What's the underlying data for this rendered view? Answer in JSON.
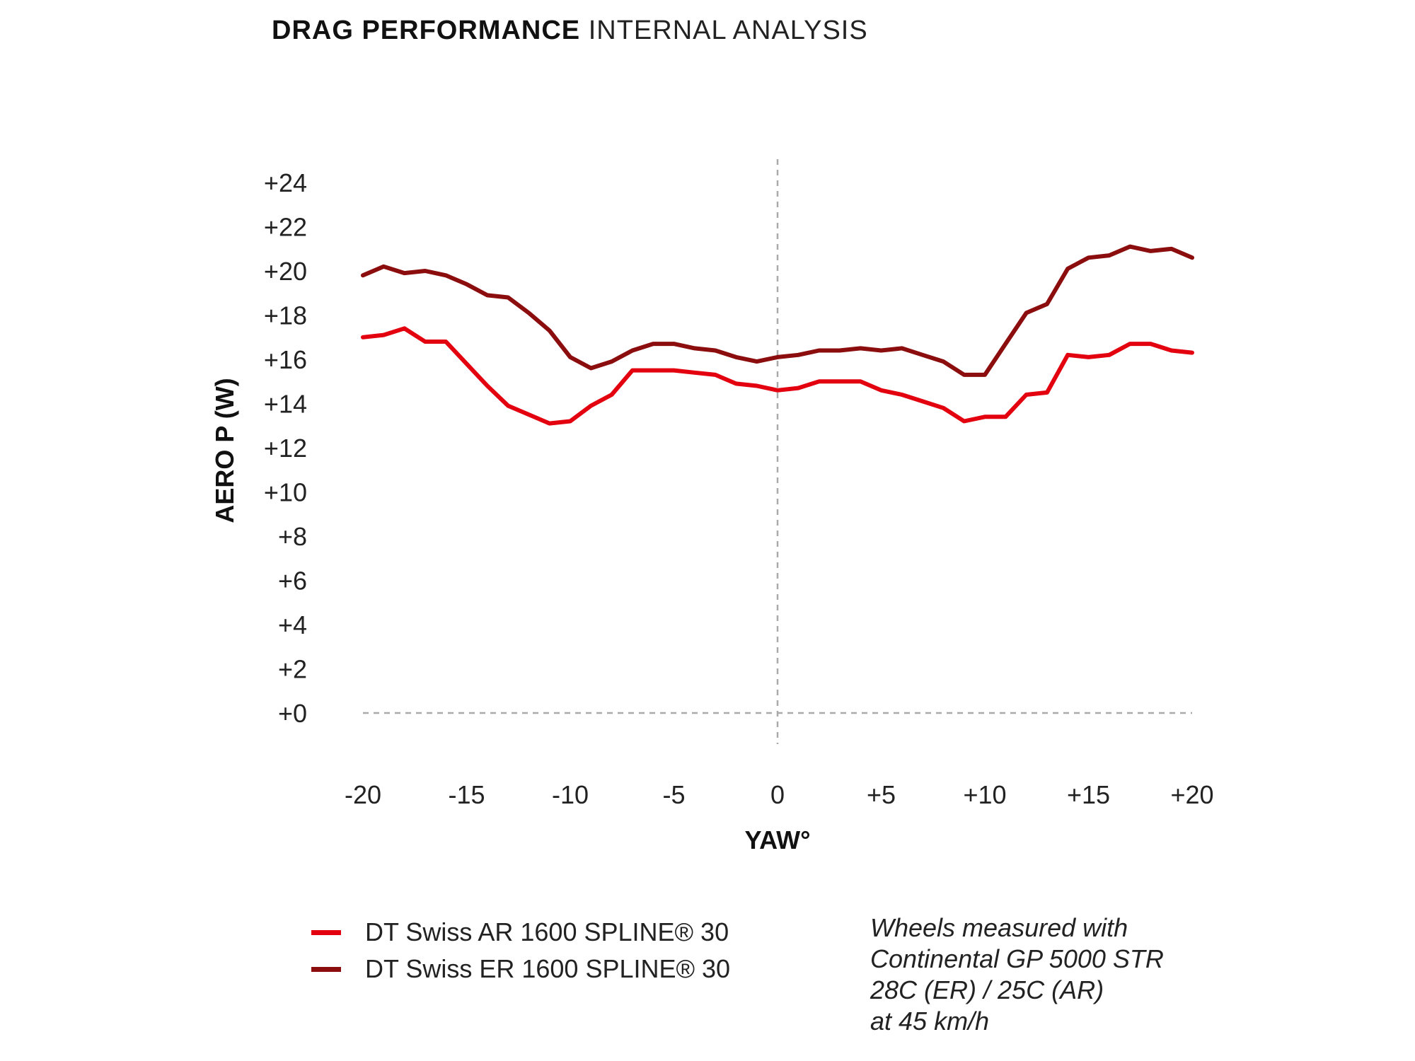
{
  "title": {
    "bold": "DRAG PERFORMANCE",
    "light": "INTERNAL ANALYSIS"
  },
  "note": {
    "lines": [
      "Wheels measured with",
      "Continental GP 5000 STR",
      "28C (ER) / 25C (AR)",
      "at 45 km/h"
    ]
  },
  "chart_data": {
    "type": "line",
    "xlabel": "YAW°",
    "ylabel": "AERO P (W)",
    "xlim": [
      -20,
      20
    ],
    "ylim": [
      0,
      24
    ],
    "x_ticks": [
      -20,
      -15,
      -10,
      -5,
      0,
      5,
      10,
      15,
      20
    ],
    "x_tick_labels": [
      "-20",
      "-15",
      "-10",
      "-5",
      "0",
      "+5",
      "+10",
      "+15",
      "+20"
    ],
    "y_ticks": [
      0,
      2,
      4,
      6,
      8,
      10,
      12,
      14,
      16,
      18,
      20,
      22,
      24
    ],
    "y_tick_labels": [
      "+0",
      "+2",
      "+4",
      "+6",
      "+8",
      "+10",
      "+12",
      "+14",
      "+16",
      "+18",
      "+20",
      "+22",
      "+24"
    ],
    "grid": false,
    "reference_lines": [
      {
        "axis": "x",
        "value": 0,
        "style": "dashed"
      },
      {
        "axis": "y",
        "value": 0,
        "style": "dashed"
      }
    ],
    "legend_position": "bottom-left",
    "x": [
      -20,
      -19,
      -18,
      -17,
      -16,
      -15,
      -14,
      -13,
      -12,
      -11,
      -10,
      -9,
      -8,
      -7,
      -6,
      -5,
      -4,
      -3,
      -2,
      -1,
      0,
      1,
      2,
      3,
      4,
      5,
      6,
      7,
      8,
      9,
      10,
      11,
      12,
      13,
      14,
      15,
      16,
      17,
      18,
      19,
      20
    ],
    "series": [
      {
        "name": "DT Swiss AR 1600 SPLINE® 30",
        "color": "#e3000f",
        "values": [
          17.0,
          17.1,
          17.4,
          16.8,
          16.8,
          15.8,
          14.8,
          13.9,
          13.5,
          13.1,
          13.2,
          13.9,
          14.4,
          15.5,
          15.5,
          15.5,
          15.4,
          15.3,
          14.9,
          14.8,
          14.6,
          14.7,
          15.0,
          15.0,
          15.0,
          14.6,
          14.4,
          14.1,
          13.8,
          13.2,
          13.4,
          13.4,
          14.4,
          14.5,
          16.2,
          16.1,
          16.2,
          16.7,
          16.7,
          16.4,
          16.3
        ]
      },
      {
        "name": "DT Swiss ER 1600 SPLINE® 30",
        "color": "#8b0d0d",
        "values": [
          19.8,
          20.2,
          19.9,
          20.0,
          19.8,
          19.4,
          18.9,
          18.8,
          18.1,
          17.3,
          16.1,
          15.6,
          15.9,
          16.4,
          16.7,
          16.7,
          16.5,
          16.4,
          16.1,
          15.9,
          16.1,
          16.2,
          16.4,
          16.4,
          16.5,
          16.4,
          16.5,
          16.2,
          15.9,
          15.3,
          15.3,
          16.7,
          18.1,
          18.5,
          20.1,
          20.6,
          20.7,
          21.1,
          20.9,
          21.0,
          20.6
        ]
      }
    ]
  }
}
